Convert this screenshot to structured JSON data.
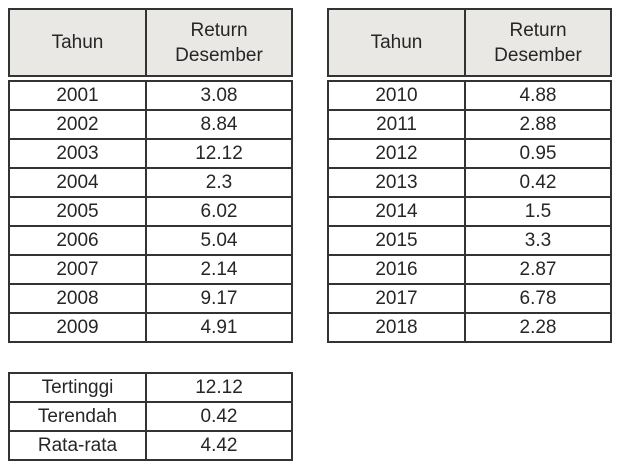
{
  "colors": {
    "page_bg": "#ffffff",
    "header_bg": "#e9e8e5",
    "border": "#333333",
    "text": "#262626"
  },
  "tables": {
    "left": {
      "title": "returns-2001-2009",
      "columns": [
        "Tahun",
        "Return Desember"
      ],
      "rows": [
        [
          "2001",
          "3.08"
        ],
        [
          "2002",
          "8.84"
        ],
        [
          "2003",
          "12.12"
        ],
        [
          "2004",
          "2.3"
        ],
        [
          "2005",
          "6.02"
        ],
        [
          "2006",
          "5.04"
        ],
        [
          "2007",
          "2.14"
        ],
        [
          "2008",
          "9.17"
        ],
        [
          "2009",
          "4.91"
        ]
      ]
    },
    "right": {
      "title": "returns-2010-2018",
      "columns": [
        "Tahun",
        "Return Desember"
      ],
      "rows": [
        [
          "2010",
          "4.88"
        ],
        [
          "2011",
          "2.88"
        ],
        [
          "2012",
          "0.95"
        ],
        [
          "2013",
          "0.42"
        ],
        [
          "2014",
          "1.5"
        ],
        [
          "2015",
          "3.3"
        ],
        [
          "2016",
          "2.87"
        ],
        [
          "2017",
          "6.78"
        ],
        [
          "2018",
          "2.28"
        ]
      ]
    },
    "summary": {
      "title": "statistics",
      "rows": [
        [
          "Tertinggi",
          "12.12"
        ],
        [
          "Terendah",
          "0.42"
        ],
        [
          "Rata-rata",
          "4.42"
        ]
      ]
    }
  }
}
